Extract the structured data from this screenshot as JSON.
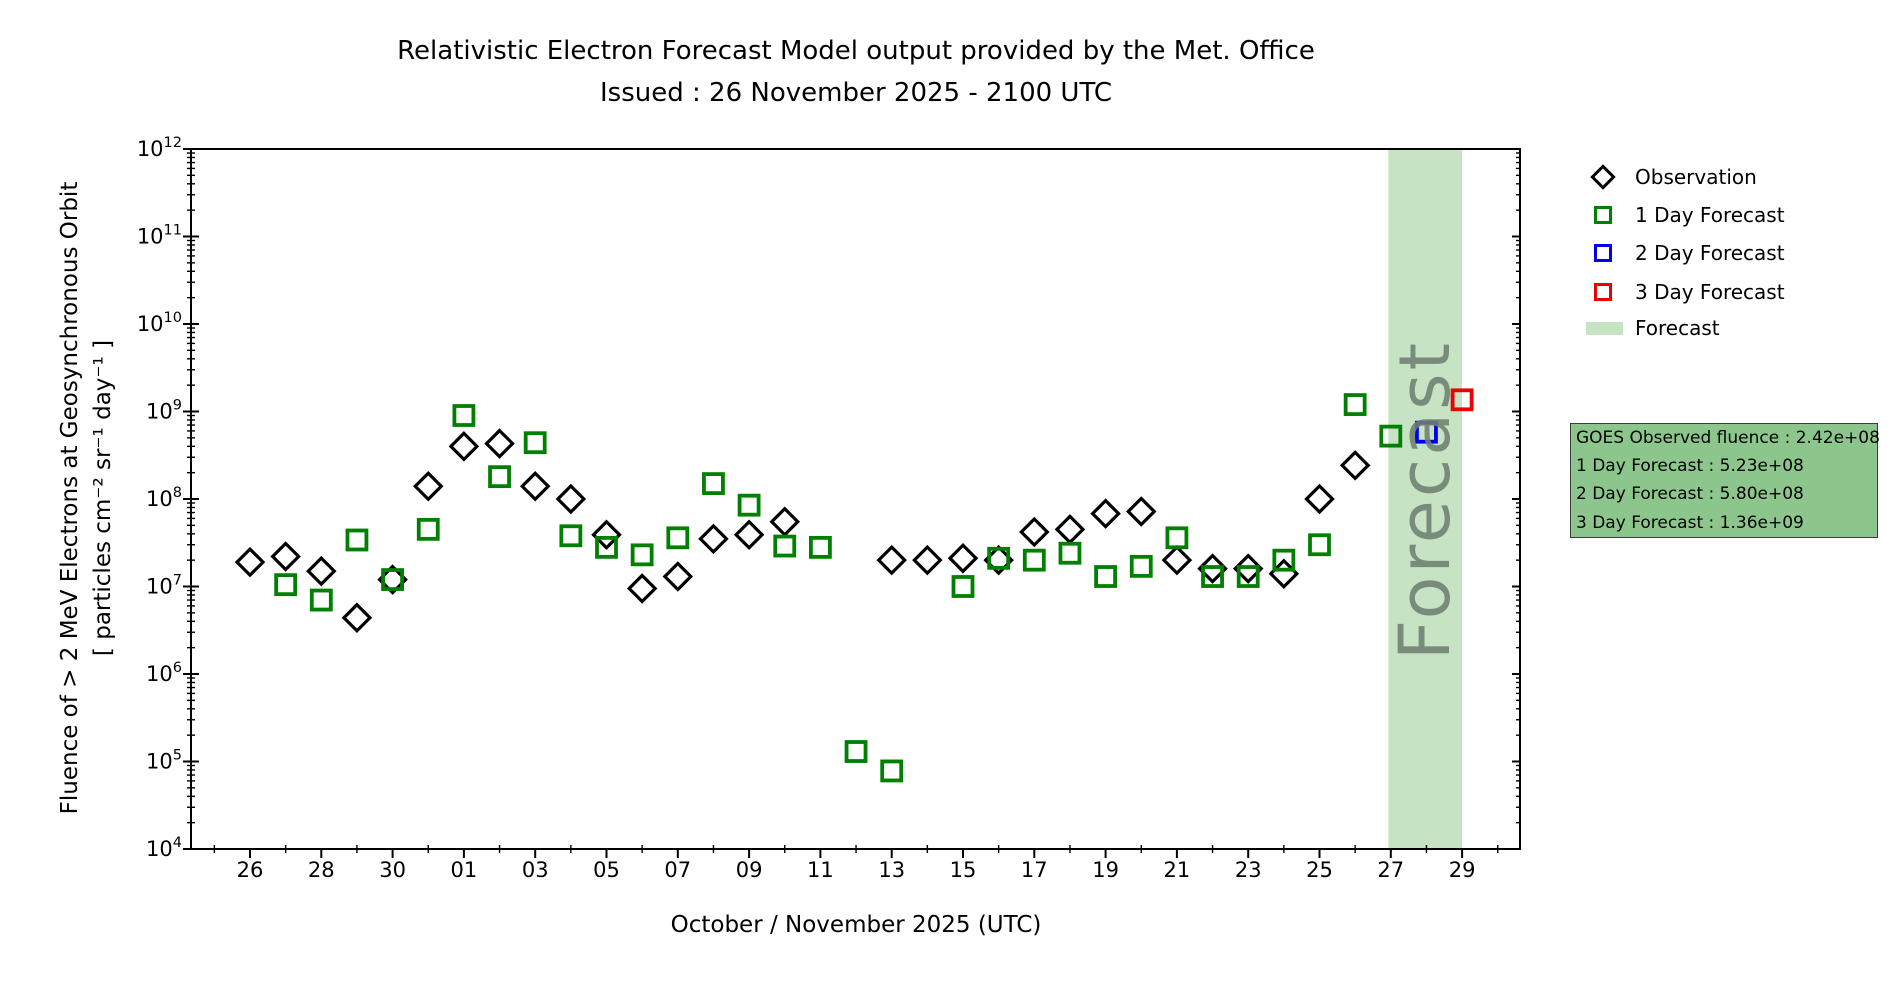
{
  "title": {
    "line1": "Relativistic Electron Forecast Model output provided by the Met. Office",
    "line2": "Issued : 26 November 2025 - 2100 UTC"
  },
  "axes": {
    "xlabel": "October / November 2025 (UTC)",
    "ylabel_line1": "Fluence of > 2 MeV Electrons at Geosynchronous Orbit",
    "ylabel_line2": "[ particles cm⁻² sr⁻¹ day⁻¹ ]",
    "y_tick_exponents": [
      4,
      5,
      6,
      7,
      8,
      9,
      10,
      11,
      12
    ],
    "x_tick_labels": [
      "26",
      "28",
      "30",
      "01",
      "03",
      "05",
      "07",
      "09",
      "11",
      "13",
      "15",
      "17",
      "19",
      "21",
      "23",
      "25",
      "27",
      "29"
    ]
  },
  "plot": {
    "watermark": "Forecast"
  },
  "legend": {
    "items": [
      {
        "label": "Observation",
        "marker": "diamond",
        "color": "#000000"
      },
      {
        "label": "1 Day Forecast",
        "marker": "square",
        "color": "#008000"
      },
      {
        "label": "2 Day Forecast",
        "marker": "square",
        "color": "#0000ee"
      },
      {
        "label": "3 Day Forecast",
        "marker": "square",
        "color": "#ee0000"
      },
      {
        "label": "Forecast",
        "marker": "patch",
        "color": "#c6e3c3"
      }
    ]
  },
  "info_box": {
    "bg": "#8cc68c",
    "lines": [
      "GOES Observed fluence : 2.42e+08",
      "1 Day Forecast : 5.23e+08",
      "2 Day Forecast : 5.80e+08",
      "3 Day Forecast : 1.36e+09"
    ]
  },
  "colors": {
    "observation": "#000000",
    "forecast_1day": "#008000",
    "forecast_2day": "#0000ee",
    "forecast_3day": "#ee0000",
    "forecast_band": "#c6e3c3",
    "watermark": "#6f7f70"
  },
  "chart_data": {
    "type": "scatter",
    "title": "Relativistic Electron Forecast Model output provided by the Met. Office",
    "subtitle": "Issued : 26 November 2025 - 2100 UTC",
    "xlabel": "October / November 2025 (UTC)",
    "ylabel": "Fluence of > 2 MeV Electrons at Geosynchronous Orbit [ particles cm-2 sr-1 day-1 ]",
    "x_axis": {
      "day0_date": "Oct 26",
      "tick_step_days": 2,
      "range_days": [
        -1.6,
        35.6
      ]
    },
    "y_axis": {
      "scale": "log",
      "min": 10000.0,
      "max": 1000000000000.0
    },
    "grid": false,
    "legend_position": "upper right, outside plot",
    "forecast_band": {
      "from_day_offset": 31.93,
      "to_day_offset": 34.0
    },
    "series": [
      {
        "name": "Observation",
        "marker": "diamond",
        "color": "#000000",
        "points": [
          {
            "date": "Oct 26",
            "value": 19000000.0
          },
          {
            "date": "Oct 27",
            "value": 22000000.0
          },
          {
            "date": "Oct 28",
            "value": 15000000.0
          },
          {
            "date": "Oct 29",
            "value": 4400000.0
          },
          {
            "date": "Oct 30",
            "value": 12000000.0
          },
          {
            "date": "Oct 31",
            "value": 140000000.0
          },
          {
            "date": "Nov 01",
            "value": 400000000.0
          },
          {
            "date": "Nov 02",
            "value": 430000000.0
          },
          {
            "date": "Nov 03",
            "value": 140000000.0
          },
          {
            "date": "Nov 04",
            "value": 100000000.0
          },
          {
            "date": "Nov 05",
            "value": 39000000.0
          },
          {
            "date": "Nov 06",
            "value": 9500000.0
          },
          {
            "date": "Nov 07",
            "value": 13000000.0
          },
          {
            "date": "Nov 08",
            "value": 35000000.0
          },
          {
            "date": "Nov 09",
            "value": 39000000.0
          },
          {
            "date": "Nov 10",
            "value": 55000000.0
          },
          {
            "date": "Nov 13",
            "value": 20000000.0
          },
          {
            "date": "Nov 14",
            "value": 20000000.0
          },
          {
            "date": "Nov 15",
            "value": 21000000.0
          },
          {
            "date": "Nov 16",
            "value": 20000000.0
          },
          {
            "date": "Nov 17",
            "value": 42000000.0
          },
          {
            "date": "Nov 18",
            "value": 45000000.0
          },
          {
            "date": "Nov 19",
            "value": 68000000.0
          },
          {
            "date": "Nov 20",
            "value": 72000000.0
          },
          {
            "date": "Nov 21",
            "value": 20000000.0
          },
          {
            "date": "Nov 22",
            "value": 16000000.0
          },
          {
            "date": "Nov 23",
            "value": 16000000.0
          },
          {
            "date": "Nov 24",
            "value": 14000000.0
          },
          {
            "date": "Nov 25",
            "value": 100000000.0
          },
          {
            "date": "Nov 26",
            "value": 242000000.0
          }
        ]
      },
      {
        "name": "1 Day Forecast",
        "marker": "square",
        "color": "#008000",
        "points": [
          {
            "date": "Oct 27",
            "value": 10500000.0
          },
          {
            "date": "Oct 28",
            "value": 7000000.0
          },
          {
            "date": "Oct 29",
            "value": 34000000.0
          },
          {
            "date": "Oct 30",
            "value": 12000000.0
          },
          {
            "date": "Oct 31",
            "value": 45000000.0
          },
          {
            "date": "Nov 01",
            "value": 900000000.0
          },
          {
            "date": "Nov 02",
            "value": 180000000.0
          },
          {
            "date": "Nov 03",
            "value": 440000000.0
          },
          {
            "date": "Nov 04",
            "value": 38000000.0
          },
          {
            "date": "Nov 05",
            "value": 28000000.0
          },
          {
            "date": "Nov 06",
            "value": 23000000.0
          },
          {
            "date": "Nov 07",
            "value": 36000000.0
          },
          {
            "date": "Nov 08",
            "value": 150000000.0
          },
          {
            "date": "Nov 09",
            "value": 85000000.0
          },
          {
            "date": "Nov 10",
            "value": 29000000.0
          },
          {
            "date": "Nov 11",
            "value": 28000000.0
          },
          {
            "date": "Nov 12",
            "value": 130000.0
          },
          {
            "date": "Nov 13",
            "value": 78000.0
          },
          {
            "date": "Nov 15",
            "value": 10000000.0
          },
          {
            "date": "Nov 16",
            "value": 21000000.0
          },
          {
            "date": "Nov 17",
            "value": 20000000.0
          },
          {
            "date": "Nov 18",
            "value": 24000000.0
          },
          {
            "date": "Nov 19",
            "value": 13000000.0
          },
          {
            "date": "Nov 20",
            "value": 17000000.0
          },
          {
            "date": "Nov 21",
            "value": 36000000.0
          },
          {
            "date": "Nov 22",
            "value": 13000000.0
          },
          {
            "date": "Nov 23",
            "value": 13000000.0
          },
          {
            "date": "Nov 24",
            "value": 20000000.0
          },
          {
            "date": "Nov 25",
            "value": 30000000.0
          },
          {
            "date": "Nov 26",
            "value": 1200000000.0
          },
          {
            "date": "Nov 27",
            "value": 523000000.0
          }
        ]
      },
      {
        "name": "2 Day Forecast",
        "marker": "square",
        "color": "#0000ee",
        "points": [
          {
            "date": "Nov 28",
            "value": 580000000.0
          }
        ]
      },
      {
        "name": "3 Day Forecast",
        "marker": "square",
        "color": "#ee0000",
        "points": [
          {
            "date": "Nov 29",
            "value": 1360000000.0
          }
        ]
      }
    ]
  }
}
